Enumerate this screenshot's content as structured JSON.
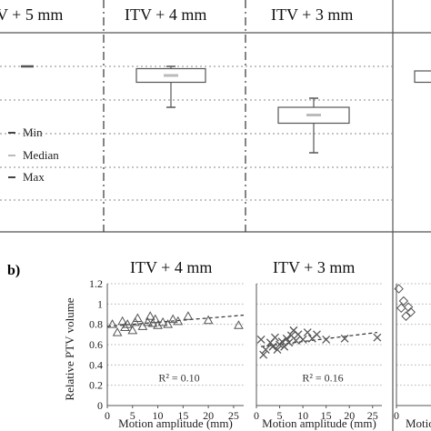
{
  "figure": {
    "panel_b_label": "b)",
    "colors": {
      "axis": "#555555",
      "grid": "#b0b0b0",
      "marker": "#555555",
      "median": "#bbbbbb"
    }
  },
  "chart_data": [
    {
      "type": "box",
      "panel": "a",
      "columns": [
        "V + 5 mm",
        "ITV + 4 mm",
        "ITV + 3 mm",
        ""
      ],
      "legend": {
        "min": "Min",
        "median": "Median",
        "max": "Max"
      },
      "grid": true,
      "boxes": [
        {
          "column": 0,
          "min": 0.79,
          "q1": 0.79,
          "median": 0.79,
          "q3": 0.79,
          "max": 0.79
        },
        {
          "column": 1,
          "min": 0.7,
          "q1": 0.755,
          "median": 0.77,
          "q3": 0.785,
          "max": 0.79
        },
        {
          "column": 2,
          "min": 0.6,
          "q1": 0.665,
          "median": 0.683,
          "q3": 0.7,
          "max": 0.72
        },
        {
          "column": 3,
          "q1": 0.755,
          "q3": 0.78,
          "partial": true
        }
      ]
    },
    {
      "type": "scatter",
      "panel": "b",
      "title": "ITV + 4 mm",
      "xlabel": "Motion amplitude (mm)",
      "ylabel": "Relative PTV volume",
      "xlim": [
        0,
        27
      ],
      "ylim": [
        0,
        1.2
      ],
      "xticks": [
        "0",
        "5",
        "10",
        "15",
        "20",
        "25"
      ],
      "yticks": [
        "0",
        "0.2",
        "0.4",
        "0.6",
        "0.8",
        "1",
        "1.2"
      ],
      "marker": "triangle",
      "r2": "R² = 0.10",
      "trend": {
        "x": [
          0,
          27
        ],
        "y": [
          0.78,
          0.89
        ]
      },
      "x": [
        1,
        2,
        3,
        3.5,
        4,
        5,
        5.5,
        6,
        7,
        8,
        8.5,
        9,
        9.5,
        10,
        11,
        12,
        13,
        14,
        16,
        20,
        26
      ],
      "y": [
        0.8,
        0.72,
        0.83,
        0.77,
        0.8,
        0.74,
        0.82,
        0.86,
        0.78,
        0.82,
        0.88,
        0.81,
        0.85,
        0.79,
        0.82,
        0.8,
        0.85,
        0.83,
        0.88,
        0.84,
        0.79
      ]
    },
    {
      "type": "scatter",
      "panel": "b",
      "title": "ITV + 3 mm",
      "xlabel": "Motion amplitude (mm)",
      "xlim": [
        0,
        27
      ],
      "ylim": [
        0,
        1.2
      ],
      "xticks": [
        "0",
        "5",
        "10",
        "15",
        "20",
        "25"
      ],
      "marker": "cross",
      "r2": "R² = 0.16",
      "trend": {
        "x": [
          1,
          26
        ],
        "y": [
          0.58,
          0.72
        ]
      },
      "x": [
        1,
        1.5,
        2,
        3,
        3.5,
        4,
        4.5,
        5,
        5.5,
        6,
        6.5,
        7,
        7.5,
        8,
        8.5,
        9,
        10,
        11,
        12,
        13,
        15,
        19,
        26
      ],
      "y": [
        0.65,
        0.5,
        0.55,
        0.62,
        0.58,
        0.67,
        0.55,
        0.6,
        0.63,
        0.58,
        0.66,
        0.62,
        0.69,
        0.74,
        0.64,
        0.7,
        0.65,
        0.72,
        0.66,
        0.7,
        0.65,
        0.66,
        0.67
      ]
    },
    {
      "type": "scatter",
      "panel": "b",
      "title": "",
      "xlabel": "Motio",
      "marker": "diamond",
      "partial": true,
      "xlim": [
        0,
        27
      ],
      "ylim": [
        0,
        1.2
      ],
      "xticks": [
        "0"
      ],
      "x": [
        0.5,
        1,
        1.5,
        2,
        2.5,
        3
      ],
      "y": [
        1.15,
        0.96,
        1.03,
        0.88,
        0.97,
        0.92
      ]
    }
  ]
}
